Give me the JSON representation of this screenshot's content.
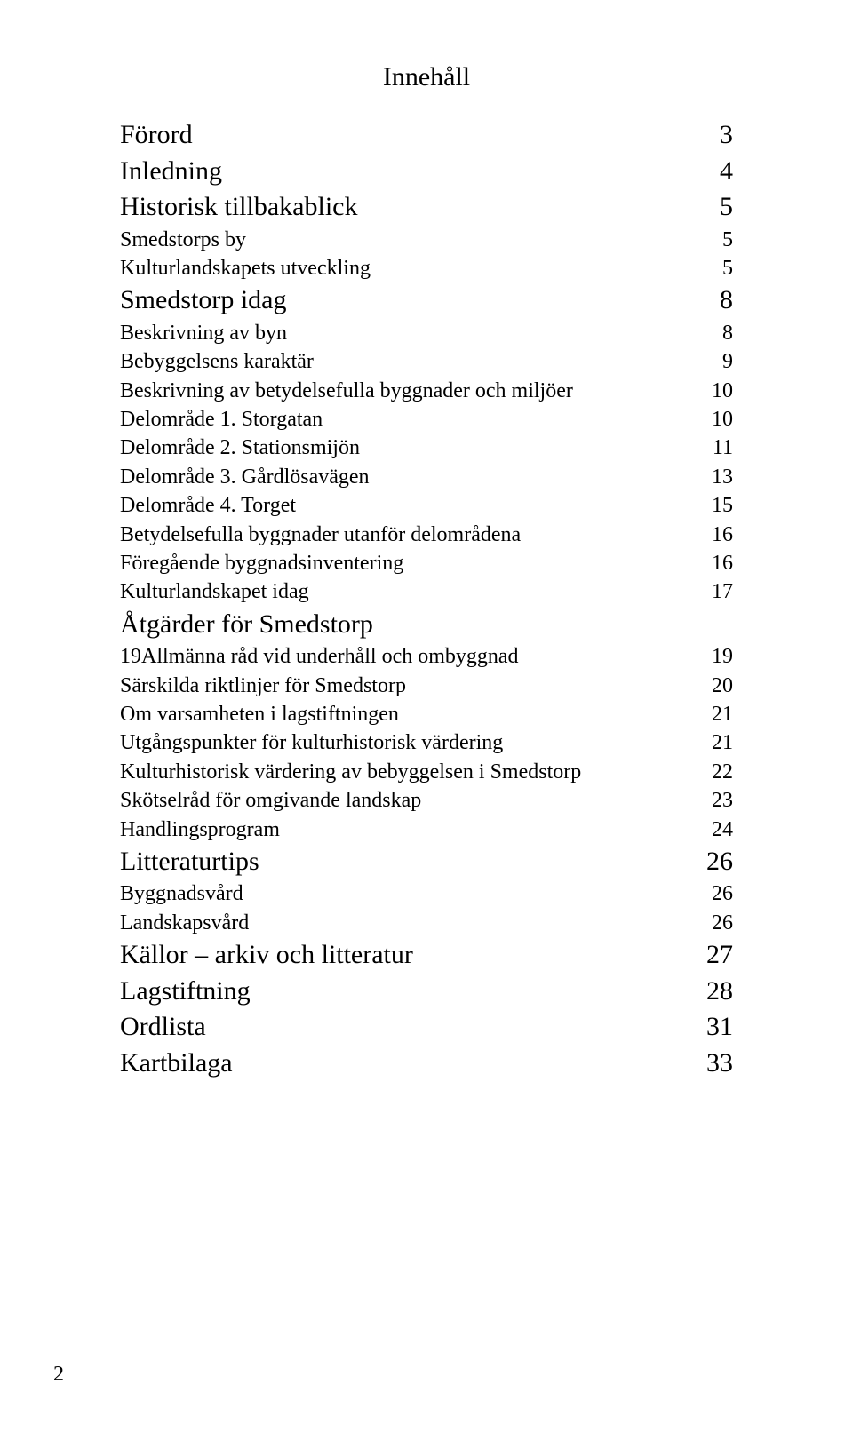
{
  "title": "Innehåll",
  "page_number": "2",
  "items": [
    {
      "label": "Förord",
      "page": "3",
      "level": 1
    },
    {
      "label": "Inledning",
      "page": "4",
      "level": 1
    },
    {
      "label": "Historisk tillbakablick",
      "page": "5",
      "level": 1
    },
    {
      "label": "Smedstorps by",
      "page": "5",
      "level": 2
    },
    {
      "label": "Kulturlandskapets utveckling",
      "page": "5",
      "level": 2
    },
    {
      "label": "Smedstorp idag",
      "page": "8",
      "level": 1
    },
    {
      "label": "Beskrivning av byn",
      "page": "8",
      "level": 2
    },
    {
      "label": "Bebyggelsens karaktär",
      "page": "9",
      "level": 2
    },
    {
      "label": "Beskrivning av betydelsefulla byggnader och miljöer",
      "page": "10",
      "level": 2
    },
    {
      "label": "Delområde 1. Storgatan",
      "page": "10",
      "level": 2
    },
    {
      "label": "Delområde 2. Stationsmijön",
      "page": "11",
      "level": 2
    },
    {
      "label": "Delområde 3. Gårdlösavägen",
      "page": "13",
      "level": 2
    },
    {
      "label": "Delområde 4. Torget",
      "page": "15",
      "level": 2
    },
    {
      "label": "Betydelsefulla byggnader utanför delområdena",
      "page": "16",
      "level": 2
    },
    {
      "label": "Föregående byggnadsinventering",
      "page": "16",
      "level": 2
    },
    {
      "label": "Kulturlandskapet idag",
      "page": "17",
      "level": 2
    },
    {
      "label": "Åtgärder för Smedstorp",
      "page": "",
      "level": 1
    },
    {
      "label": "19Allmänna råd vid underhåll och ombyggnad",
      "page": "19",
      "level": 2
    },
    {
      "label": "Särskilda riktlinjer för Smedstorp",
      "page": "20",
      "level": 2
    },
    {
      "label": "Om varsamheten i lagstiftningen",
      "page": "21",
      "level": 2
    },
    {
      "label": "Utgångspunkter för kulturhistorisk värdering",
      "page": "21",
      "level": 2
    },
    {
      "label": "Kulturhistorisk värdering av bebyggelsen i Smedstorp",
      "page": "22",
      "level": 2
    },
    {
      "label": "Skötselråd för omgivande landskap",
      "page": "23",
      "level": 2
    },
    {
      "label": "Handlingsprogram",
      "page": "24",
      "level": 2
    },
    {
      "label": "Litteraturtips",
      "page": "26",
      "level": 1
    },
    {
      "label": "Byggnadsvård",
      "page": "26",
      "level": 2
    },
    {
      "label": "Landskapsvård",
      "page": "26",
      "level": 2
    },
    {
      "label": "Källor – arkiv och litteratur",
      "page": "27",
      "level": 1
    },
    {
      "label": "Lagstiftning",
      "page": "28",
      "level": 1
    },
    {
      "label": "Ordlista",
      "page": "31",
      "level": 1
    },
    {
      "label": "Kartbilaga",
      "page": "33",
      "level": 1
    }
  ]
}
